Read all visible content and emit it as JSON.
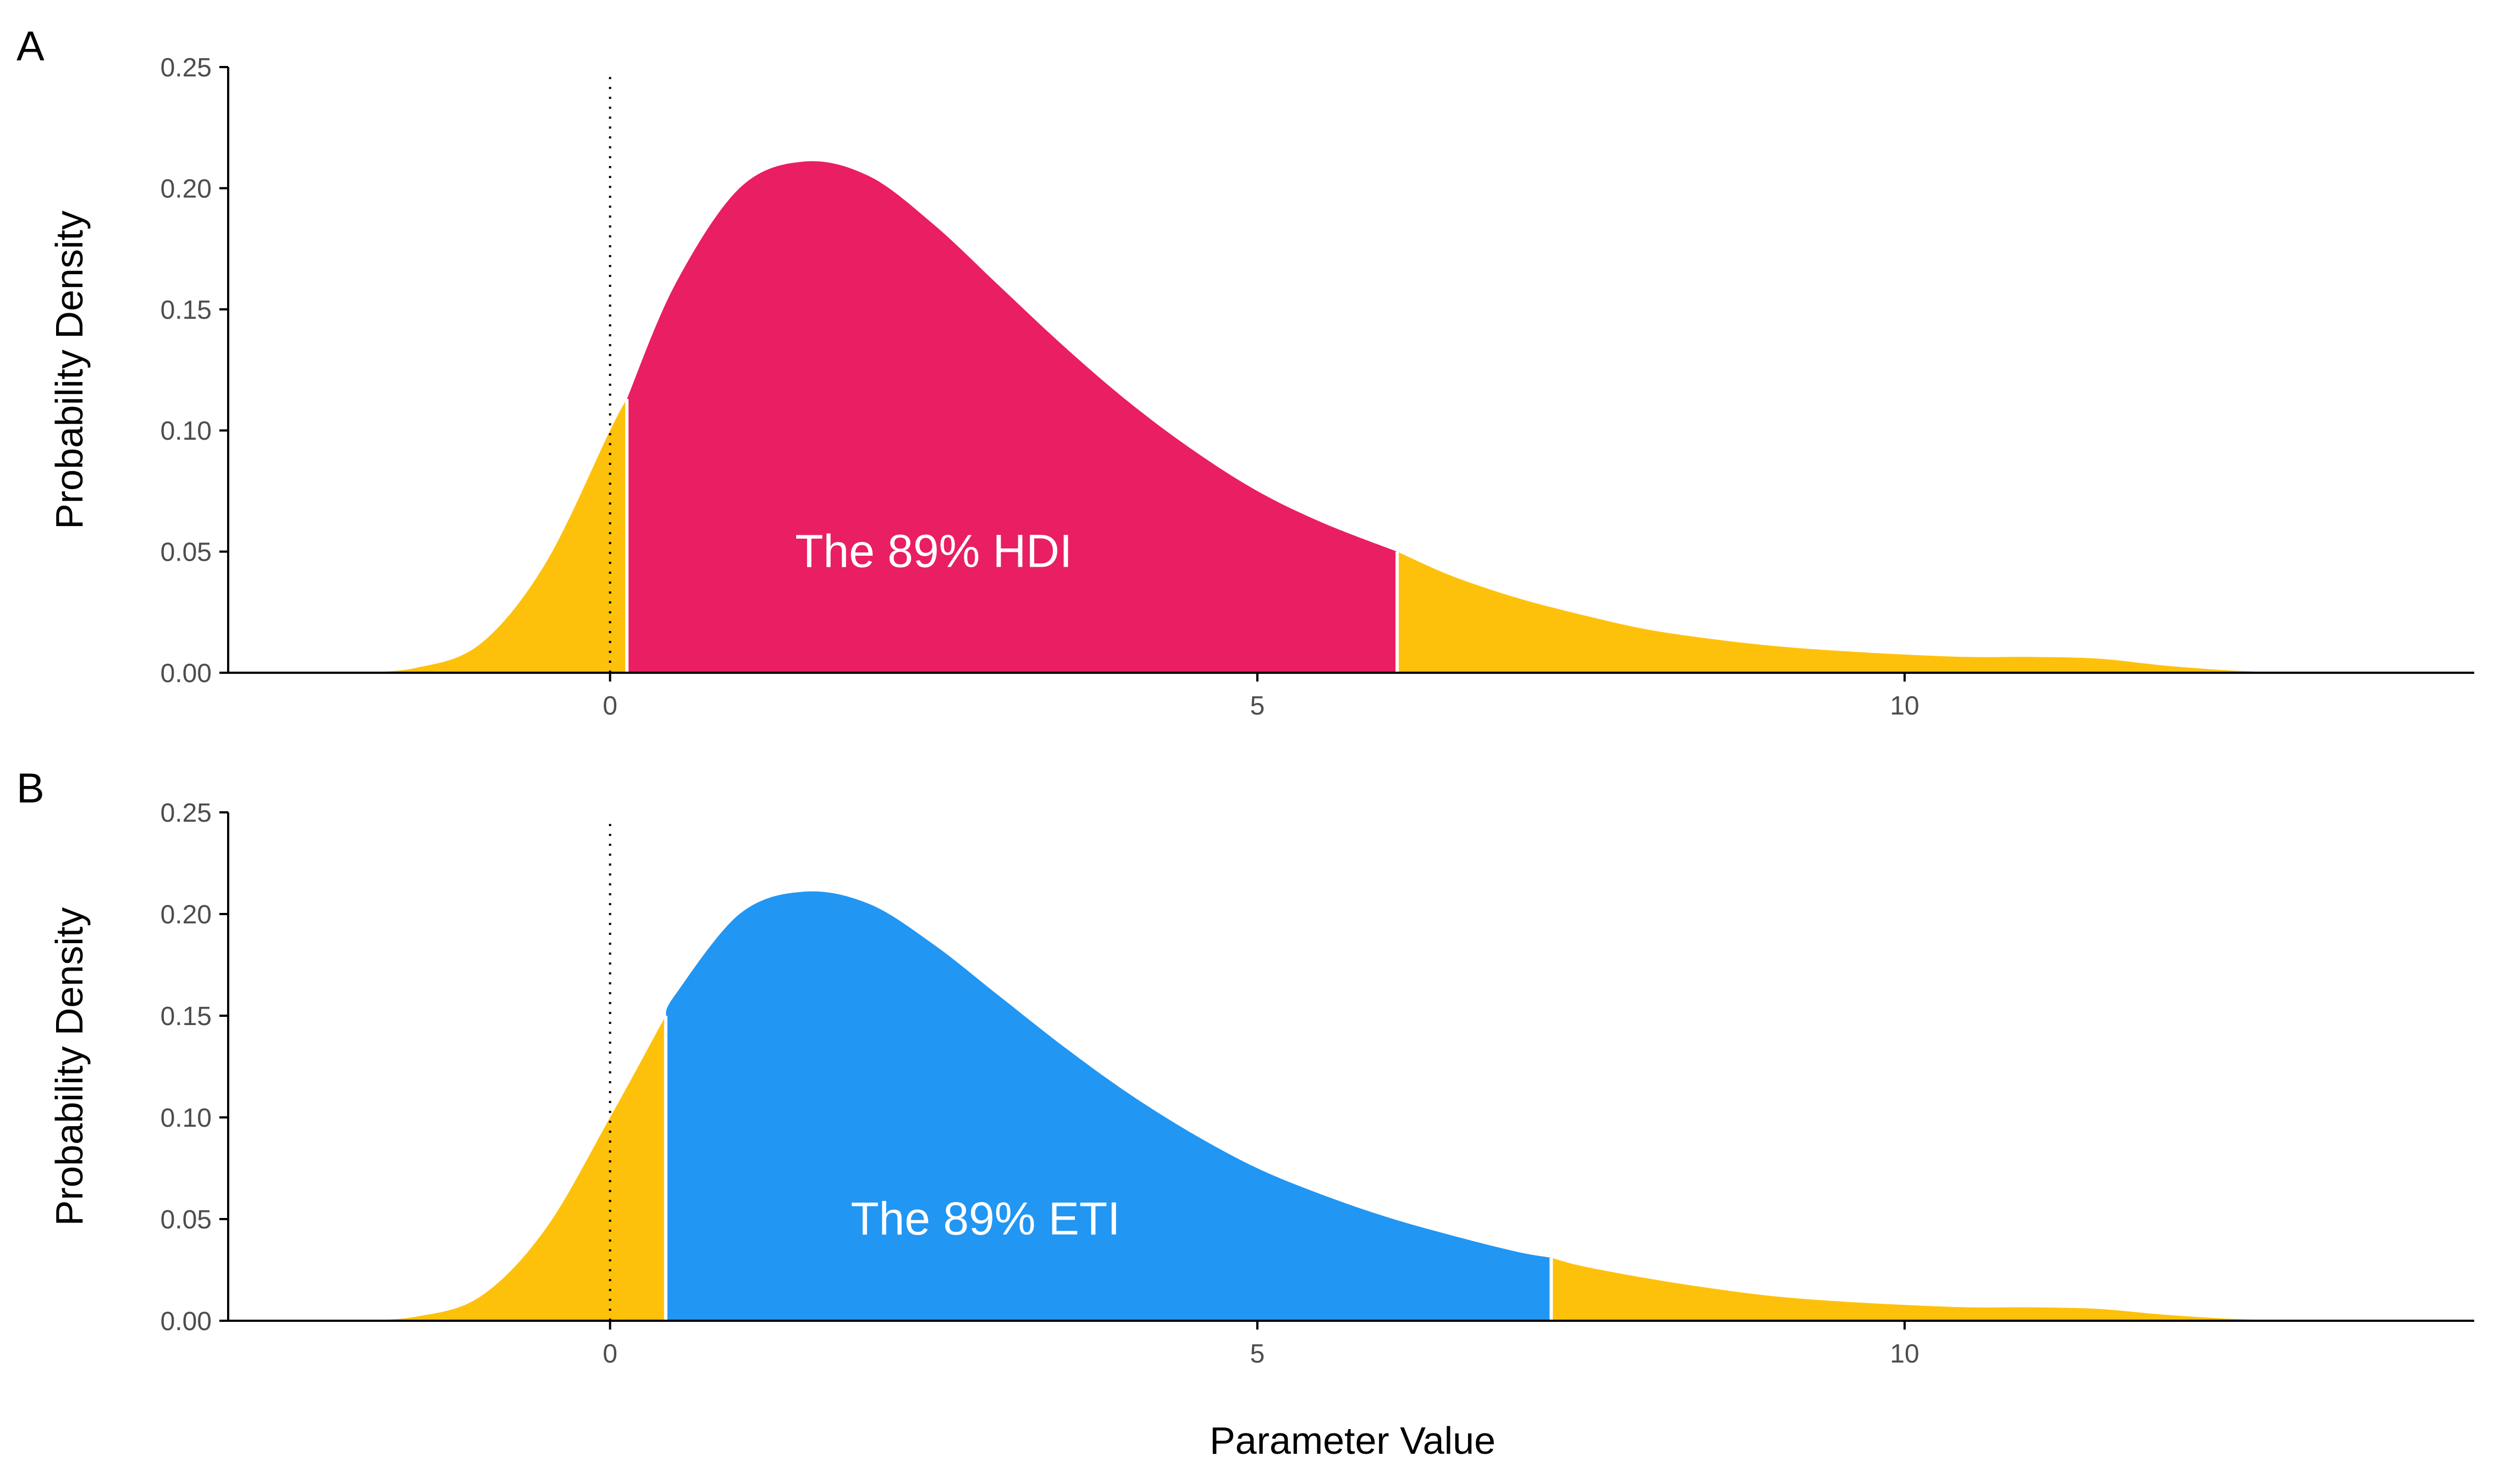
{
  "figure": {
    "xlabel": "Parameter Value"
  },
  "colors": {
    "tail": "#FEC10B",
    "hdi": "#E91E63",
    "eti": "#2196F3",
    "separator": "#ffffff",
    "axis": "#000000",
    "reference_line": "#000000"
  },
  "chart_data": [
    {
      "type": "area",
      "panel": "A",
      "title": "",
      "ylabel": "Probability Density",
      "xlabel": "",
      "xlim": [
        -2.95,
        14.4
      ],
      "ylim": [
        0,
        0.25
      ],
      "x_ticks": [
        0,
        5,
        10
      ],
      "y_ticks": [
        0,
        0.05,
        0.1,
        0.15,
        0.2,
        0.25
      ],
      "y_tick_labels": [
        "0.00",
        "0.05",
        "0.10",
        "0.15",
        "0.20",
        "0.25"
      ],
      "x_tick_labels": [
        "0",
        "5",
        "10"
      ],
      "reference_line_x": 0,
      "interval": {
        "label": "The 89% HDI",
        "low": 0.13,
        "high": 6.08,
        "fill": "hdi",
        "label_x": 2.5,
        "label_y": 0.05
      },
      "density": {
        "x": [
          -2,
          -1.5,
          -1,
          -0.5,
          0,
          0.13,
          0.5,
          1,
          1.5,
          2,
          2.5,
          3,
          3.5,
          4,
          4.5,
          5,
          5.5,
          6.08,
          6.5,
          7,
          7.5,
          8,
          8.5,
          9,
          9.5,
          10,
          10.5,
          11,
          11.5,
          12,
          12.5,
          13
        ],
        "y": [
          0.0,
          0.002,
          0.012,
          0.045,
          0.1,
          0.113,
          0.16,
          0.2,
          0.211,
          0.205,
          0.185,
          0.16,
          0.135,
          0.112,
          0.092,
          0.075,
          0.062,
          0.05,
          0.04,
          0.031,
          0.024,
          0.018,
          0.014,
          0.011,
          0.009,
          0.0075,
          0.0065,
          0.0065,
          0.0058,
          0.003,
          0.001,
          0.0
        ]
      }
    },
    {
      "type": "area",
      "panel": "B",
      "title": "",
      "ylabel": "Probability Density",
      "xlabel": "Parameter Value",
      "xlim": [
        -2.95,
        14.4
      ],
      "ylim": [
        0,
        0.25
      ],
      "x_ticks": [
        0,
        5,
        10
      ],
      "y_ticks": [
        0,
        0.05,
        0.1,
        0.15,
        0.2,
        0.25
      ],
      "y_tick_labels": [
        "0.00",
        "0.05",
        "0.10",
        "0.15",
        "0.20",
        "0.25"
      ],
      "x_tick_labels": [
        "0",
        "5",
        "10"
      ],
      "reference_line_x": 0,
      "interval": {
        "label": "The 89% ETI",
        "low": 0.43,
        "high": 7.27,
        "fill": "eti",
        "label_x": 2.9,
        "label_y": 0.05
      },
      "density": {
        "x": [
          -2,
          -1.5,
          -1,
          -0.5,
          0,
          0.43,
          0.5,
          1,
          1.5,
          2,
          2.5,
          3,
          3.5,
          4,
          4.5,
          5,
          5.5,
          6,
          6.5,
          7,
          7.27,
          7.5,
          8,
          8.5,
          9,
          9.5,
          10,
          10.5,
          11,
          11.5,
          12,
          12.5,
          13
        ],
        "y": [
          0.0,
          0.002,
          0.012,
          0.045,
          0.1,
          0.15,
          0.16,
          0.2,
          0.211,
          0.205,
          0.185,
          0.16,
          0.135,
          0.112,
          0.092,
          0.075,
          0.062,
          0.051,
          0.042,
          0.034,
          0.031,
          0.027,
          0.021,
          0.016,
          0.012,
          0.0095,
          0.0078,
          0.0066,
          0.0066,
          0.0058,
          0.003,
          0.001,
          0.0
        ]
      }
    }
  ]
}
